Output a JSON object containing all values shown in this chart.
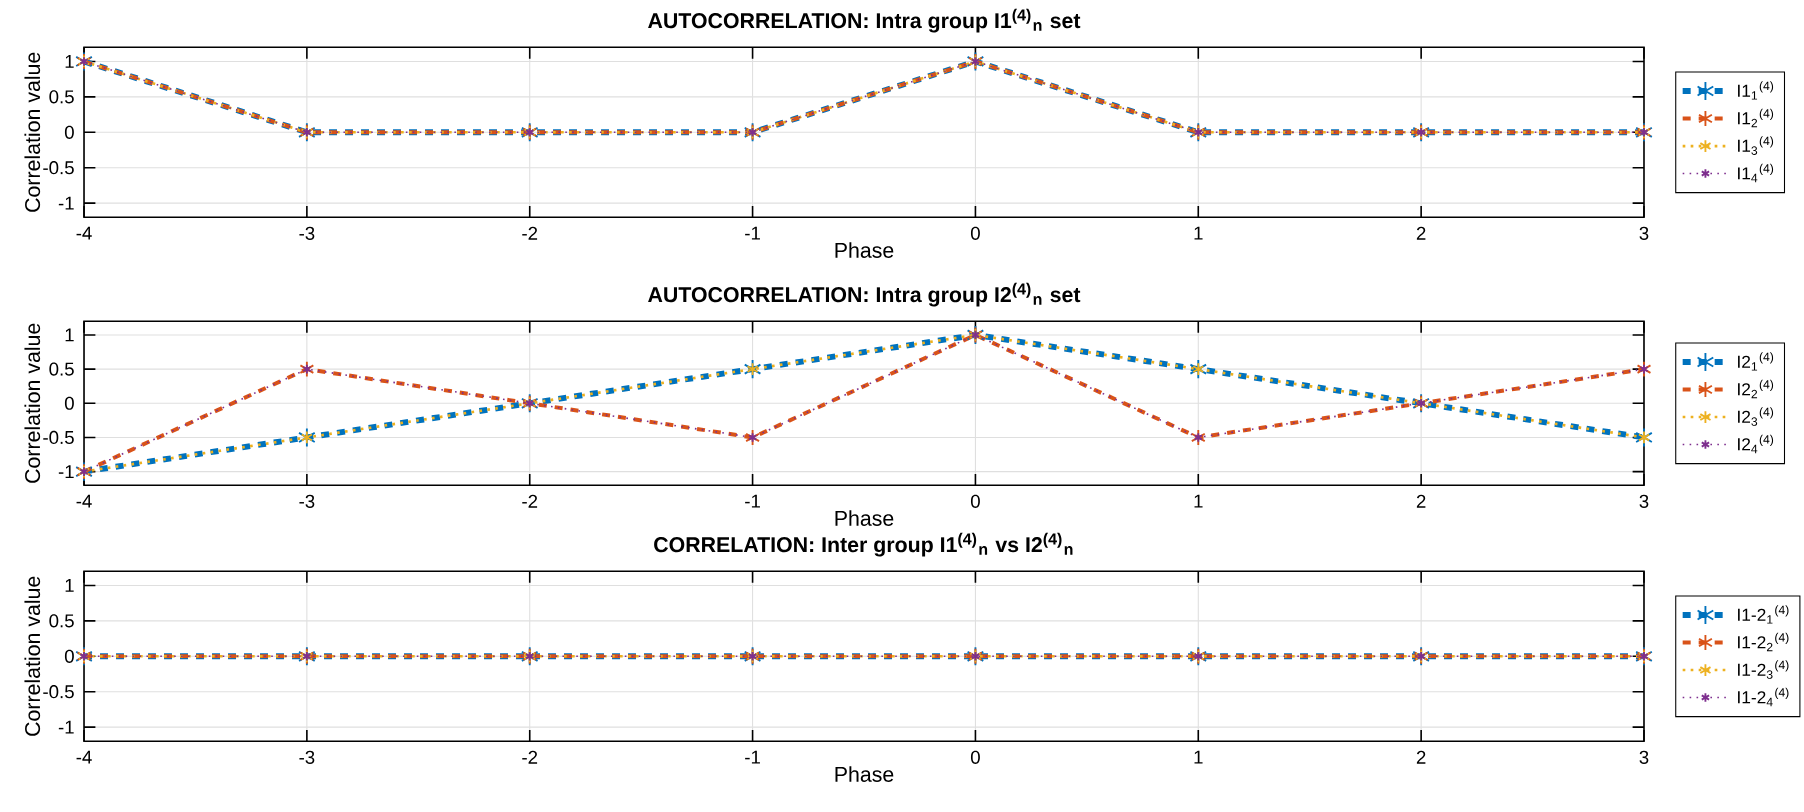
{
  "chart_data": [
    {
      "type": "line",
      "title": "AUTOCORRELATION: Intra group I1$^{(4)}$$_{n}$ set",
      "xlabel": "Phase",
      "ylabel": "Correlation value",
      "x": [
        -4,
        -3,
        -2,
        -1,
        0,
        1,
        2,
        3
      ],
      "xlim": [
        -4,
        3
      ],
      "xticks": [
        -4,
        -3,
        -2,
        -1,
        0,
        1,
        2,
        3
      ],
      "ylim": [
        -1.2,
        1.2
      ],
      "yticks": [
        -1,
        -0.5,
        0,
        0.5,
        1
      ],
      "grid": true,
      "legend": "right",
      "marker": "cross",
      "series": [
        {
          "name": "I1$_{1}$$^{(4)}$",
          "color": "#0072bd",
          "line_style": "dashed",
          "values": [
            1,
            0,
            0,
            0,
            1,
            0,
            0,
            0
          ]
        },
        {
          "name": "I1$_{2}$$^{(4)}$",
          "color": "#d95319",
          "line_style": "dashed",
          "values": [
            1,
            0,
            0,
            0,
            1,
            0,
            0,
            0
          ]
        },
        {
          "name": "I1$_{3}$$^{(4)}$",
          "color": "#edb120",
          "line_style": "dotted",
          "values": [
            1,
            0,
            0,
            0,
            1,
            0,
            0,
            0
          ]
        },
        {
          "name": "I1$_{4}$$^{(4)}$",
          "color": "#7e2f8e",
          "line_style": "dotted",
          "values": [
            1,
            0,
            0,
            0,
            1,
            0,
            0,
            0
          ]
        }
      ]
    },
    {
      "type": "line",
      "title": "AUTOCORRELATION: Intra group I2$^{(4)}$$_{n}$ set",
      "xlabel": "Phase",
      "ylabel": "Correlation value",
      "x": [
        -4,
        -3,
        -2,
        -1,
        0,
        1,
        2,
        3
      ],
      "xlim": [
        -4,
        3
      ],
      "xticks": [
        -4,
        -3,
        -2,
        -1,
        0,
        1,
        2,
        3
      ],
      "ylim": [
        -1.2,
        1.2
      ],
      "yticks": [
        -1,
        -0.5,
        0,
        0.5,
        1
      ],
      "grid": true,
      "legend": "right",
      "marker": "cross",
      "series": [
        {
          "name": "I2$_{1}$$^{(4)}$",
          "color": "#0072bd",
          "line_style": "dashed",
          "values": [
            -1,
            -0.5,
            0,
            0.5,
            1,
            0.5,
            0,
            -0.5
          ]
        },
        {
          "name": "I2$_{2}$$^{(4)}$",
          "color": "#d95319",
          "line_style": "dashed",
          "values": [
            -1,
            0.5,
            0,
            -0.5,
            1,
            -0.5,
            0,
            0.5
          ]
        },
        {
          "name": "I2$_{3}$$^{(4)}$",
          "color": "#edb120",
          "line_style": "dotted",
          "values": [
            -1,
            -0.5,
            0,
            0.5,
            1,
            0.5,
            0,
            -0.5
          ]
        },
        {
          "name": "I2$_{4}$$^{(4)}$",
          "color": "#7e2f8e",
          "line_style": "dotted",
          "values": [
            -1,
            0.5,
            0,
            -0.5,
            1,
            -0.5,
            0,
            0.5
          ]
        }
      ]
    },
    {
      "type": "line",
      "title": "CORRELATION: Inter group I1$^{(4)}$$_{n}$ vs I2$^{(4)}$$_{n}$",
      "xlabel": "Phase",
      "ylabel": "Correlation value",
      "x": [
        -4,
        -3,
        -2,
        -1,
        0,
        1,
        2,
        3
      ],
      "xlim": [
        -4,
        3
      ],
      "xticks": [
        -4,
        -3,
        -2,
        -1,
        0,
        1,
        2,
        3
      ],
      "ylim": [
        -1.2,
        1.2
      ],
      "yticks": [
        -1,
        -0.5,
        0,
        0.5,
        1
      ],
      "grid": true,
      "legend": "right",
      "marker": "cross",
      "series": [
        {
          "name": "I1-2$_{1}$$^{(4)}$",
          "color": "#0072bd",
          "line_style": "dashed",
          "values": [
            0,
            0,
            0,
            0,
            0,
            0,
            0,
            0
          ]
        },
        {
          "name": "I1-2$_{2}$$^{(4)}$",
          "color": "#d95319",
          "line_style": "dashed",
          "values": [
            0,
            0,
            0,
            0,
            0,
            0,
            0,
            0
          ]
        },
        {
          "name": "I1-2$_{3}$$^{(4)}$",
          "color": "#edb120",
          "line_style": "dotted",
          "values": [
            0,
            0,
            0,
            0,
            0,
            0,
            0,
            0
          ]
        },
        {
          "name": "I1-2$_{4}$$^{(4)}$",
          "color": "#7e2f8e",
          "line_style": "dotted",
          "values": [
            0,
            0,
            0,
            0,
            0,
            0,
            0,
            0
          ]
        }
      ]
    }
  ]
}
